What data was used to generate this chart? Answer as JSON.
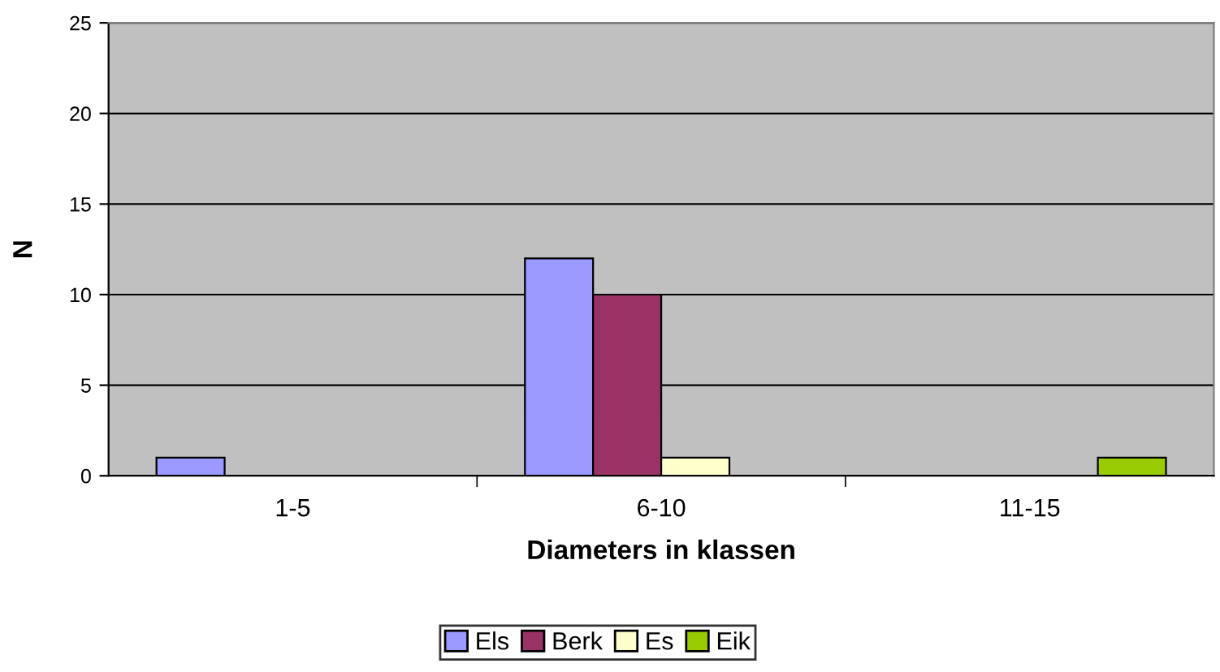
{
  "chart_data": {
    "type": "bar",
    "xlabel": "Diameters in klassen",
    "ylabel": "N",
    "categories": [
      "1-5",
      "6-10",
      "11-15"
    ],
    "series": [
      {
        "name": "Els",
        "color": "#9999ff",
        "values": [
          1,
          12,
          0
        ]
      },
      {
        "name": "Berk",
        "color": "#993366",
        "values": [
          0,
          10,
          0
        ]
      },
      {
        "name": "Es",
        "color": "#ffffcc",
        "values": [
          0,
          1,
          0
        ]
      },
      {
        "name": "Eik",
        "color": "#99cc00",
        "values": [
          0,
          0,
          1
        ]
      }
    ],
    "ylim": [
      0,
      25
    ],
    "yticks": [
      0,
      5,
      10,
      15,
      20,
      25
    ],
    "grid": "y",
    "legend": "bottom"
  }
}
